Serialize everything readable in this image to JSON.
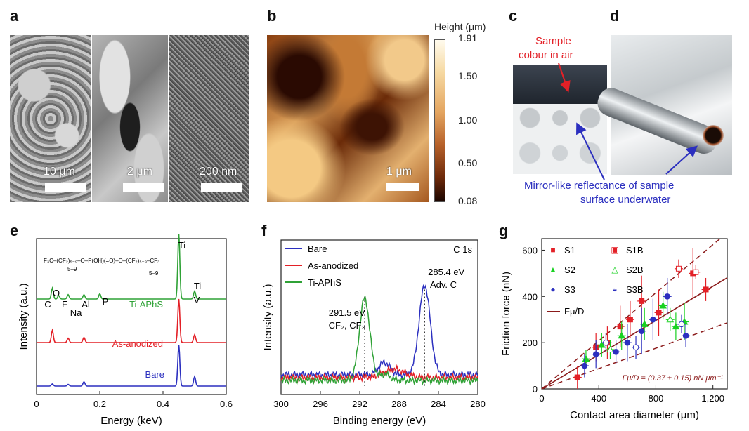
{
  "panel_labels": {
    "a": "a",
    "b": "b",
    "c": "c",
    "d": "d",
    "e": "e",
    "f": "f",
    "g": "g"
  },
  "panel_a": {
    "scale_bars": [
      "10 μm",
      "2 μm",
      "200 nm"
    ]
  },
  "panel_b": {
    "scale_bar": "1 μm",
    "colorbar_title": "Height (μm)",
    "colorbar_ticks": [
      "1.91",
      "1.50",
      "1.00",
      "0.50",
      "0.08"
    ]
  },
  "panel_cd": {
    "annotation_top": [
      "Sample",
      "colour in air"
    ],
    "annotation_bottom": [
      "Mirror-like reflectance of sample",
      "surface underwater"
    ]
  },
  "colors": {
    "red": "#e32027",
    "blue": "#2b2fbf",
    "green": "#2fa236",
    "dark_red": "#8b1a1a"
  },
  "chart_data": [
    {
      "type": "line",
      "panel": "e",
      "xlabel": "Energy (keV)",
      "ylabel": "Intensity (a.u.)",
      "xlim": [
        0,
        0.6
      ],
      "xticks": [
        "0",
        "0.2",
        "0.4",
        "0.6"
      ],
      "series": [
        {
          "name": "Ti-APhS",
          "color": "#2fa236",
          "offset": 2.0,
          "peaks": [
            [
              0.05,
              0.25
            ],
            [
              0.07,
              0.08
            ],
            [
              0.1,
              0.1
            ],
            [
              0.15,
              0.1
            ],
            [
              0.2,
              0.12
            ],
            [
              0.45,
              1.5
            ],
            [
              0.5,
              0.18
            ]
          ]
        },
        {
          "name": "As-anodized",
          "color": "#e32027",
          "offset": 1.0,
          "peaks": [
            [
              0.05,
              0.28
            ],
            [
              0.1,
              0.1
            ],
            [
              0.15,
              0.12
            ],
            [
              0.45,
              1.0
            ],
            [
              0.5,
              0.18
            ]
          ]
        },
        {
          "name": "Bare",
          "color": "#2b2fbf",
          "offset": 0.0,
          "peaks": [
            [
              0.05,
              0.05
            ],
            [
              0.1,
              0.04
            ],
            [
              0.15,
              0.1
            ],
            [
              0.45,
              0.95
            ],
            [
              0.5,
              0.22
            ]
          ]
        }
      ],
      "element_labels": {
        "C": "C",
        "O": "O",
        "F": "F",
        "Na": "Na",
        "Al": "Al",
        "P": "P",
        "Ti": "Ti",
        "Ti2": "Ti",
        "V": "V"
      },
      "formula_parts": {
        "main": "F₃C–(CF₂)₅₋₉–O–P(OH)(=O)–O–(CF₂)₅₋₉–CF₃",
        "sub1": "5–9",
        "sub2": "5–9"
      }
    },
    {
      "type": "line",
      "panel": "f",
      "xlabel": "Binding energy (eV)",
      "ylabel": "Intensity (a.u.)",
      "xlim": [
        300,
        280
      ],
      "xticks": [
        "300",
        "296",
        "292",
        "288",
        "284",
        "280"
      ],
      "legend": [
        "Bare",
        "As-anodized",
        "Ti-APhS"
      ],
      "corner_label": "C 1s",
      "annotations": {
        "peak1_value": "291.5 eV",
        "peak1_species": "CF₂, CF₃",
        "peak2_value": "285.4 eV",
        "peak2_species": "Adv. C"
      },
      "series": [
        {
          "name": "Bare",
          "color": "#2b2fbf",
          "peaks": [
            [
              285.4,
              0.85,
              0.8
            ],
            [
              289.5,
              0.12,
              0.8
            ]
          ]
        },
        {
          "name": "As-anodized",
          "color": "#e32027",
          "peaks": [
            [
              288.5,
              0.08,
              1.5
            ]
          ]
        },
        {
          "name": "Ti-APhS",
          "color": "#2fa236",
          "peaks": [
            [
              291.5,
              0.78,
              0.75
            ],
            [
              289.5,
              0.06,
              0.8
            ]
          ]
        }
      ]
    },
    {
      "type": "scatter",
      "panel": "g",
      "xlabel": "Contact area diameter (μm)",
      "ylabel": "Friction force (nN)",
      "xlim": [
        0,
        1300
      ],
      "ylim": [
        0,
        650
      ],
      "xticks": [
        0,
        400,
        800,
        1200
      ],
      "yticks": [
        0,
        200,
        400,
        600
      ],
      "xtick_labels": [
        "0",
        "400",
        "800",
        "1,200"
      ],
      "ytick_labels": [
        "0",
        "200",
        "400",
        "600"
      ],
      "legend": [
        "S1",
        "S1B",
        "S2",
        "S2B",
        "S3",
        "S3B",
        "Fμ/D"
      ],
      "fit_label": "Fμ/D = (0.37 ± 0.15) nN μm⁻¹",
      "fit_slope": 0.37,
      "band_slopes": [
        0.52,
        0.22
      ],
      "series": [
        {
          "name": "S1",
          "color": "#e32027",
          "points": [
            [
              250,
              50,
              50
            ],
            [
              380,
              180,
              60
            ],
            [
              460,
              200,
              70
            ],
            [
              550,
              270,
              90
            ],
            [
              620,
              300,
              80
            ],
            [
              700,
              380,
              110
            ],
            [
              820,
              330,
              100
            ],
            [
              1060,
              500,
              110
            ],
            [
              1150,
              430,
              50
            ]
          ]
        },
        {
          "name": "S1B",
          "color": "#e32027",
          "points": [
            [
              960,
              520,
              40
            ],
            [
              1080,
              505,
              30
            ]
          ]
        },
        {
          "name": "S2",
          "color": "#18d121",
          "points": [
            [
              310,
              130,
              40
            ],
            [
              420,
              190,
              50
            ],
            [
              560,
              230,
              60
            ],
            [
              720,
              280,
              70
            ],
            [
              850,
              360,
              60
            ],
            [
              940,
              270,
              60
            ],
            [
              1000,
              290,
              80
            ]
          ]
        },
        {
          "name": "S2B",
          "color": "#18d121",
          "points": [
            [
              480,
              170,
              40
            ],
            [
              900,
              300,
              50
            ]
          ]
        },
        {
          "name": "S3",
          "color": "#2b2fbf",
          "points": [
            [
              300,
              100,
              50
            ],
            [
              380,
              150,
              60
            ],
            [
              520,
              160,
              50
            ],
            [
              600,
              200,
              80
            ],
            [
              700,
              250,
              100
            ],
            [
              780,
              300,
              90
            ],
            [
              880,
              400,
              80
            ],
            [
              1010,
              230,
              50
            ]
          ]
        },
        {
          "name": "S3B",
          "color": "#2b2fbf",
          "points": [
            [
              450,
              200,
              40
            ],
            [
              660,
              180,
              50
            ],
            [
              980,
              280,
              40
            ]
          ]
        }
      ]
    }
  ]
}
